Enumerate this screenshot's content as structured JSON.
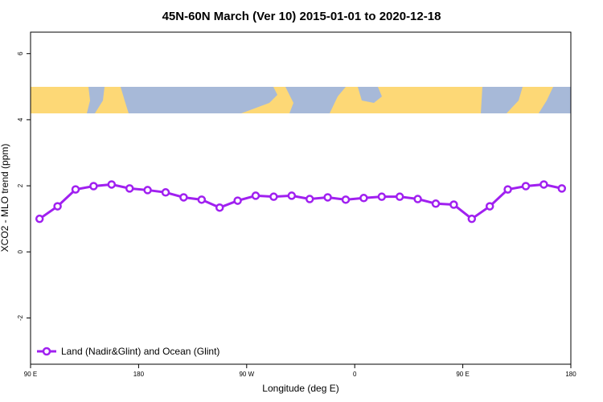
{
  "chart_data": {
    "type": "line",
    "title": "45N-60N March (Ver 10)   2015-01-01 to 2020-12-18",
    "x_label": "Longitude (deg E)",
    "y_label": "XCO2 - MLO trend (ppm)",
    "x": [
      97.5,
      112.5,
      127.5,
      142.5,
      157.5,
      172.5,
      187.5,
      202.5,
      217.5,
      232.5,
      247.5,
      262.5,
      277.5,
      292.5,
      307.5,
      322.5,
      337.5,
      352.5,
      367.5,
      382.5,
      397.5,
      412.5,
      427.5,
      442.5,
      457.5,
      472.5,
      487.5,
      502.5,
      517.5,
      532.5
    ],
    "series": [
      {
        "name": "Land (Nadir&Glint) and Ocean (Glint)",
        "color": "#a020f0",
        "values": [
          1.0,
          1.38,
          1.89,
          1.99,
          2.04,
          1.92,
          1.87,
          1.8,
          1.65,
          1.58,
          1.34,
          1.55,
          1.7,
          1.67,
          1.7,
          1.6,
          1.65,
          1.58,
          1.63,
          1.67,
          1.67,
          1.6,
          1.46,
          1.43,
          1.0,
          1.38,
          1.89,
          1.99,
          2.04,
          1.92
        ]
      }
    ],
    "xlim": [
      90,
      540
    ],
    "ylim": [
      -3.4,
      6.65
    ],
    "xticks": [
      {
        "value": 90,
        "label": "90 E"
      },
      180,
      {
        "value": 270,
        "label": "90 W"
      },
      {
        "value": 360,
        "label": "0"
      },
      {
        "value": 450,
        "label": "90 E"
      },
      {
        "value": 540,
        "label": "180"
      }
    ],
    "yticks": [
      -2,
      0,
      2,
      4,
      6
    ],
    "legend": "bottom-left",
    "grid": false
  }
}
